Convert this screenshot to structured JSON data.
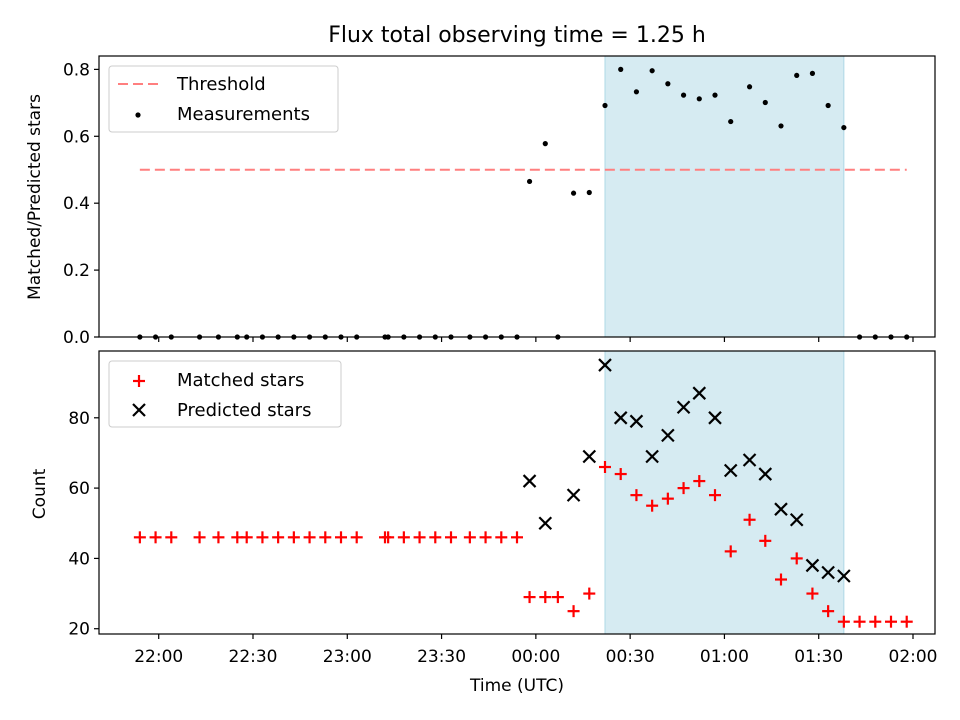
{
  "chart_data": [
    {
      "type": "scatter",
      "title": "Flux total observing time = 1.25 h",
      "xlabel": "",
      "ylabel": "Matched/Predicted stars",
      "ylim": [
        0,
        0.84
      ],
      "yticks": [
        "0.0",
        "0.2",
        "0.4",
        "0.6",
        "0.8"
      ],
      "legend": {
        "placement": "upper-left",
        "entries": [
          "Threshold",
          "Measurements"
        ]
      },
      "shaded_interval": {
        "start": "00:22",
        "end": "01:38"
      },
      "threshold": {
        "name": "Threshold",
        "value": 0.5,
        "x_start": "21:54",
        "x_end": "01:58",
        "color": "#ff7f7f"
      },
      "series": [
        {
          "name": "Measurements",
          "color": "#000000",
          "points": [
            [
              "21:54",
              0
            ],
            [
              "21:59",
              0
            ],
            [
              "22:04",
              0
            ],
            [
              "22:13",
              0
            ],
            [
              "22:19",
              0
            ],
            [
              "22:25",
              0
            ],
            [
              "22:28",
              0
            ],
            [
              "22:33",
              0
            ],
            [
              "22:38",
              0
            ],
            [
              "22:43",
              0
            ],
            [
              "22:48",
              0
            ],
            [
              "22:53",
              0
            ],
            [
              "22:58",
              0
            ],
            [
              "23:03",
              0
            ],
            [
              "23:12",
              0
            ],
            [
              "23:13",
              0
            ],
            [
              "23:18",
              0
            ],
            [
              "23:23",
              0
            ],
            [
              "23:28",
              0
            ],
            [
              "23:33",
              0
            ],
            [
              "23:39",
              0
            ],
            [
              "23:44",
              0
            ],
            [
              "23:49",
              0
            ],
            [
              "23:54",
              0
            ],
            [
              "23:58",
              0.465
            ],
            [
              "00:03",
              0.578
            ],
            [
              "00:07",
              0
            ],
            [
              "00:12",
              0.43
            ],
            [
              "00:17",
              0.432
            ],
            [
              "00:22",
              0.692
            ],
            [
              "00:27",
              0.8
            ],
            [
              "00:32",
              0.733
            ],
            [
              "00:37",
              0.796
            ],
            [
              "00:42",
              0.757
            ],
            [
              "00:47",
              0.723
            ],
            [
              "00:52",
              0.712
            ],
            [
              "00:57",
              0.723
            ],
            [
              "01:02",
              0.644
            ],
            [
              "01:08",
              0.748
            ],
            [
              "01:13",
              0.701
            ],
            [
              "01:18",
              0.631
            ],
            [
              "01:23",
              0.782
            ],
            [
              "01:28",
              0.788
            ],
            [
              "01:33",
              0.692
            ],
            [
              "01:38",
              0.626
            ],
            [
              "01:43",
              0
            ],
            [
              "01:48",
              0
            ],
            [
              "01:53",
              0
            ],
            [
              "01:58",
              0
            ]
          ]
        }
      ]
    },
    {
      "type": "scatter",
      "title": "",
      "xlabel": "Time (UTC)",
      "ylabel": "Count",
      "ylim": [
        18.5,
        99
      ],
      "yticks": [
        "20",
        "40",
        "60",
        "80"
      ],
      "xlim": [
        "21:41",
        "02:07"
      ],
      "xticks": [
        "22:00",
        "22:30",
        "23:00",
        "23:30",
        "00:00",
        "00:30",
        "01:00",
        "01:30",
        "02:00"
      ],
      "legend": {
        "placement": "upper-left",
        "entries": [
          "Matched stars",
          "Predicted stars"
        ]
      },
      "shaded_interval": {
        "start": "00:22",
        "end": "01:38"
      },
      "series": [
        {
          "name": "Matched stars",
          "color": "#ff0000",
          "marker": "+",
          "points": [
            [
              "21:54",
              46
            ],
            [
              "21:59",
              46
            ],
            [
              "22:04",
              46
            ],
            [
              "22:13",
              46
            ],
            [
              "22:19",
              46
            ],
            [
              "22:25",
              46
            ],
            [
              "22:28",
              46
            ],
            [
              "22:33",
              46
            ],
            [
              "22:38",
              46
            ],
            [
              "22:43",
              46
            ],
            [
              "22:48",
              46
            ],
            [
              "22:53",
              46
            ],
            [
              "22:58",
              46
            ],
            [
              "23:03",
              46
            ],
            [
              "23:12",
              46
            ],
            [
              "23:13",
              46
            ],
            [
              "23:18",
              46
            ],
            [
              "23:23",
              46
            ],
            [
              "23:28",
              46
            ],
            [
              "23:33",
              46
            ],
            [
              "23:39",
              46
            ],
            [
              "23:44",
              46
            ],
            [
              "23:49",
              46
            ],
            [
              "23:54",
              46
            ],
            [
              "23:58",
              29
            ],
            [
              "00:03",
              29
            ],
            [
              "00:07",
              29
            ],
            [
              "00:12",
              25
            ],
            [
              "00:17",
              30
            ],
            [
              "00:22",
              66
            ],
            [
              "00:27",
              64
            ],
            [
              "00:32",
              58
            ],
            [
              "00:37",
              55
            ],
            [
              "00:42",
              57
            ],
            [
              "00:47",
              60
            ],
            [
              "00:52",
              62
            ],
            [
              "00:57",
              58
            ],
            [
              "01:02",
              42
            ],
            [
              "01:08",
              51
            ],
            [
              "01:13",
              45
            ],
            [
              "01:18",
              34
            ],
            [
              "01:23",
              40
            ],
            [
              "01:28",
              30
            ],
            [
              "01:33",
              25
            ],
            [
              "01:38",
              22
            ],
            [
              "01:43",
              22
            ],
            [
              "01:48",
              22
            ],
            [
              "01:53",
              22
            ],
            [
              "01:58",
              22
            ]
          ]
        },
        {
          "name": "Predicted stars",
          "color": "#000000",
          "marker": "x",
          "points": [
            [
              "23:58",
              62
            ],
            [
              "00:03",
              50
            ],
            [
              "00:12",
              58
            ],
            [
              "00:17",
              69
            ],
            [
              "00:22",
              95
            ],
            [
              "00:27",
              80
            ],
            [
              "00:32",
              79
            ],
            [
              "00:37",
              69
            ],
            [
              "00:42",
              75
            ],
            [
              "00:47",
              83
            ],
            [
              "00:52",
              87
            ],
            [
              "00:57",
              80
            ],
            [
              "01:02",
              65
            ],
            [
              "01:08",
              68
            ],
            [
              "01:13",
              64
            ],
            [
              "01:18",
              54
            ],
            [
              "01:23",
              51
            ],
            [
              "01:28",
              38
            ],
            [
              "01:33",
              36
            ],
            [
              "01:38",
              35
            ]
          ]
        }
      ]
    }
  ]
}
